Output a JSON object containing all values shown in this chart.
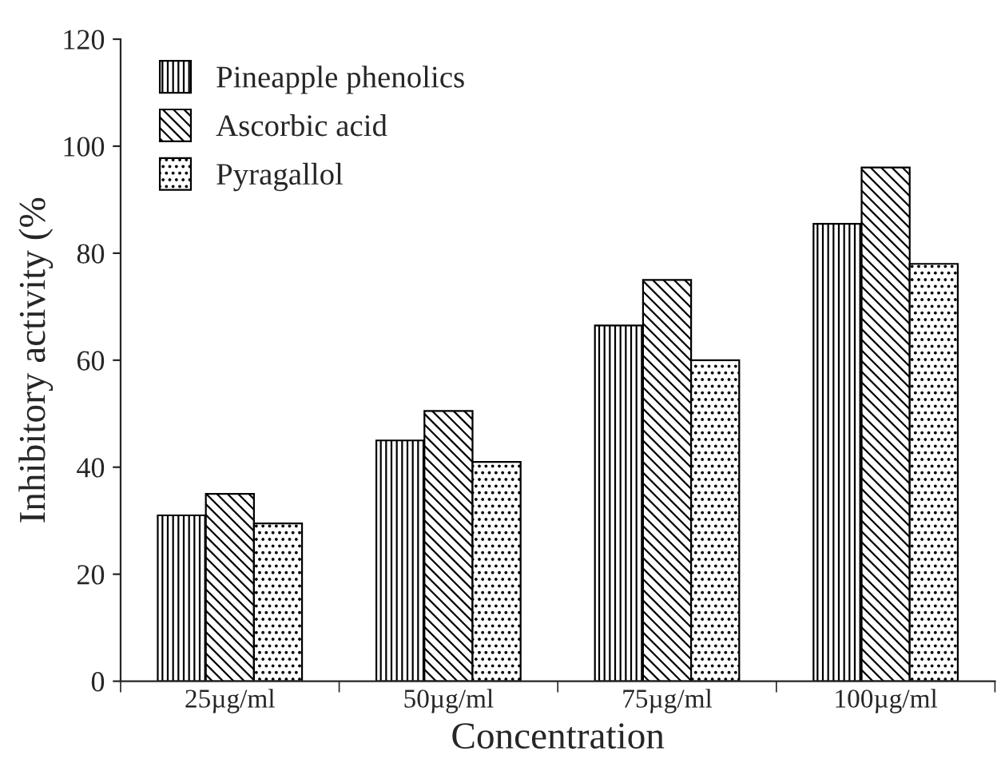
{
  "chart_data": {
    "type": "bar",
    "xlabel": "Concentration",
    "ylabel": "Inhibitory activity (%",
    "categories": [
      "25µg/ml",
      "50µg/ml",
      "75µg/ml",
      "100µg/ml"
    ],
    "series": [
      {
        "name": "Pineapple phenolics",
        "color": "#000000",
        "values": [
          31,
          45,
          66.5,
          85.5
        ]
      },
      {
        "name": "Ascorbic acid",
        "color": "#000000",
        "values": [
          35,
          50.5,
          75,
          96
        ]
      },
      {
        "name": "Pyragallol",
        "color": "#000000",
        "values": [
          29.5,
          41,
          60,
          78
        ]
      }
    ],
    "ylim": [
      0,
      120
    ],
    "yticks": [
      0,
      20,
      40,
      60,
      80,
      100,
      120
    ],
    "grid": false,
    "legend": "top left"
  }
}
